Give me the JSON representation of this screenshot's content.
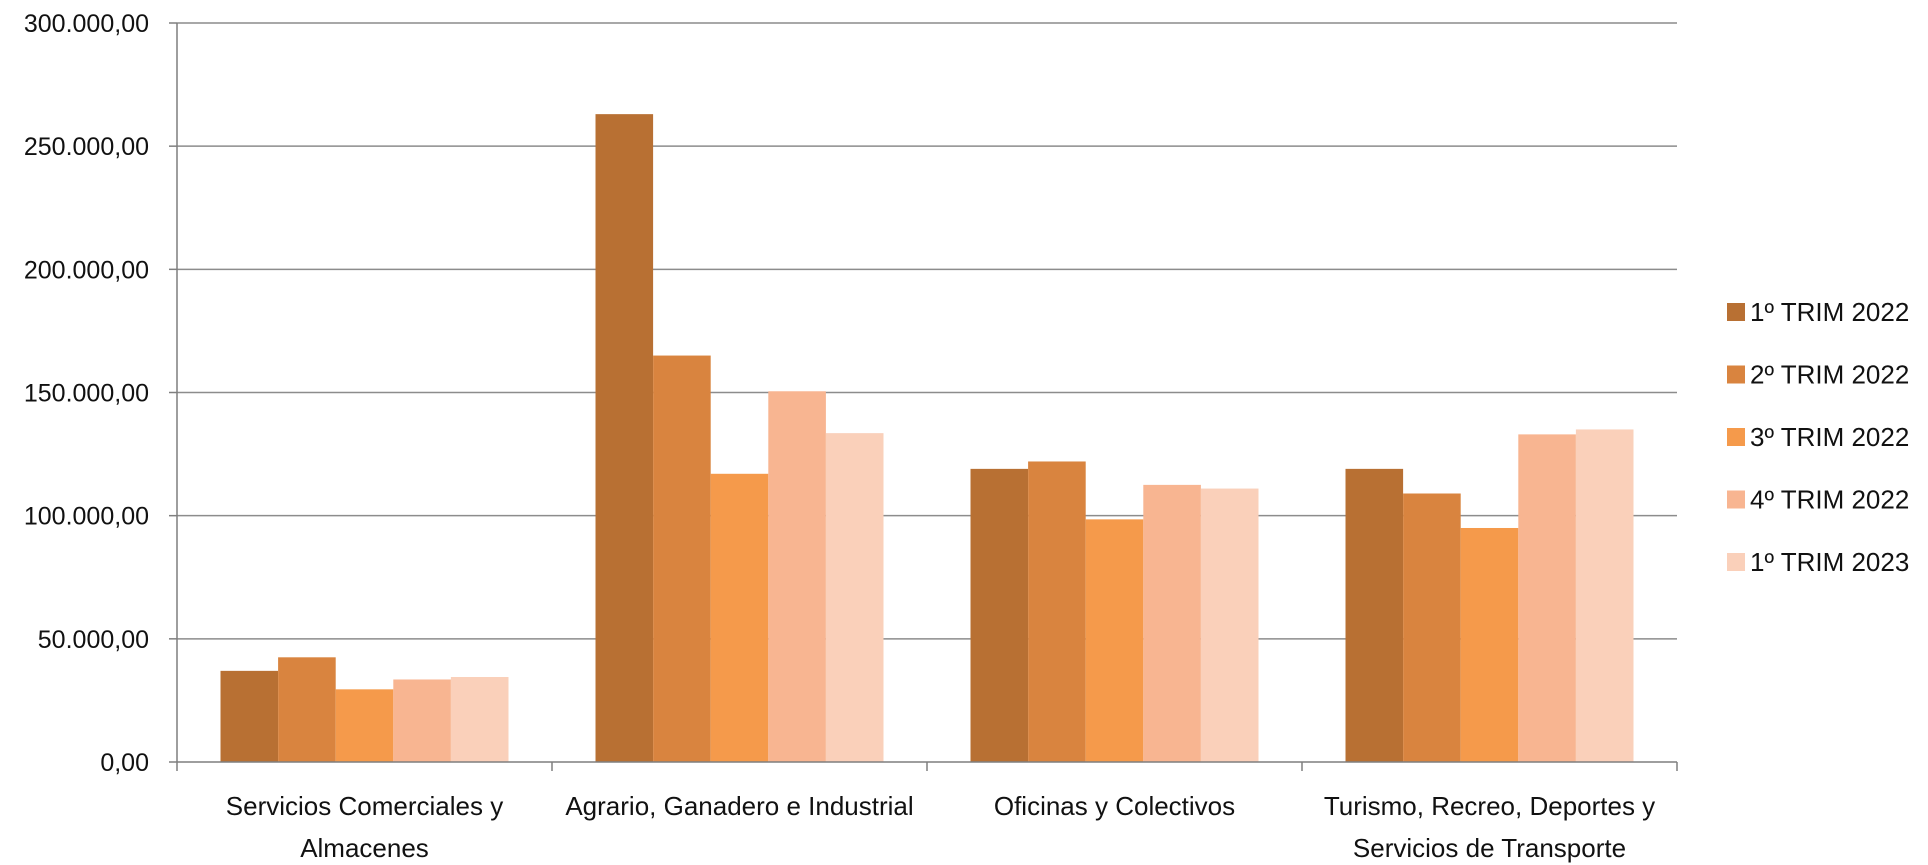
{
  "chart_data": {
    "type": "bar",
    "categories": [
      [
        "Servicios Comerciales y",
        "Almacenes"
      ],
      [
        "Agrario, Ganadero e Industrial"
      ],
      [
        "Oficinas y Colectivos"
      ],
      [
        "Turismo, Recreo, Deportes y",
        "Servicios de Transporte"
      ]
    ],
    "series": [
      {
        "name": "1º TRIM 2022",
        "color": "#B87033",
        "values": [
          37000,
          263000,
          119000,
          119000
        ]
      },
      {
        "name": "2º TRIM 2022",
        "color": "#D9843F",
        "values": [
          42500,
          165000,
          122000,
          109000
        ]
      },
      {
        "name": "3º TRIM 2022",
        "color": "#F59A4B",
        "values": [
          29500,
          117000,
          98500,
          95000
        ]
      },
      {
        "name": "4º TRIM 2022",
        "color": "#F8B591",
        "values": [
          33500,
          150500,
          112500,
          133000
        ]
      },
      {
        "name": "1º TRIM 2023",
        "color": "#FAD0BA",
        "values": [
          34500,
          133500,
          111000,
          135000
        ]
      }
    ],
    "y_ticks": [
      "0,00",
      "50.000,00",
      "100.000,00",
      "150.000,00",
      "200.000,00",
      "250.000,00",
      "300.000,00"
    ],
    "ylim": [
      0,
      300000
    ],
    "grid": true,
    "legend_position": "right",
    "title": "",
    "xlabel": "",
    "ylabel": ""
  }
}
